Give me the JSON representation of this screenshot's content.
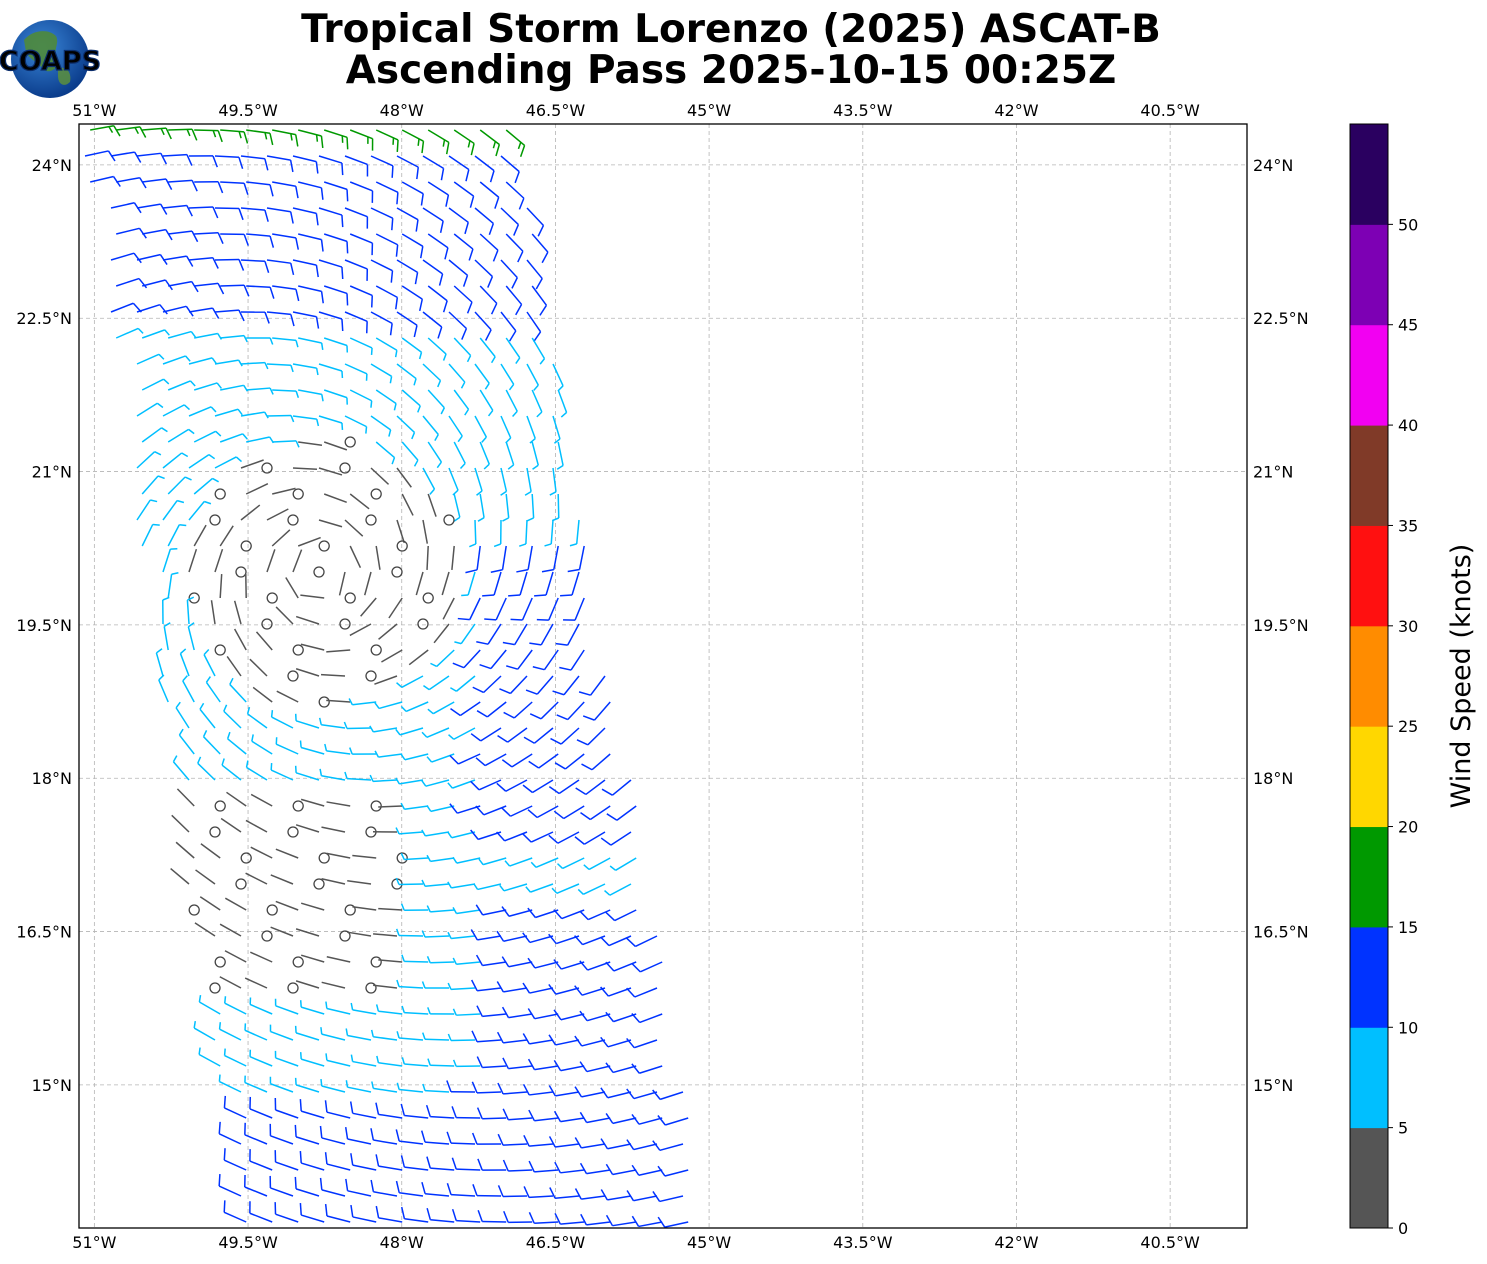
{
  "title": {
    "line1": "Tropical Storm Lorenzo (2025) ASCAT-B",
    "line2": "Ascending Pass 2025-10-15 00:25Z"
  },
  "logo": {
    "text": "COAPS",
    "icon": "globe-icon"
  },
  "map": {
    "lon_range": [
      -51.15,
      -39.75
    ],
    "lat_range": [
      13.6,
      24.4
    ],
    "lon_ticks": [
      -51,
      -49.5,
      -48,
      -46.5,
      -45,
      -43.5,
      -42,
      -40.5
    ],
    "lon_tick_labels": [
      "51°W",
      "49.5°W",
      "48°W",
      "46.5°W",
      "45°W",
      "43.5°W",
      "42°W",
      "40.5°W"
    ],
    "lat_ticks": [
      24,
      22.5,
      21,
      19.5,
      18,
      16.5,
      15
    ],
    "lat_tick_labels": [
      "24°N",
      "22.5°N",
      "21°N",
      "19.5°N",
      "18°N",
      "16.5°N",
      "15°N"
    ],
    "grid": true,
    "swath_outline_lonlat": [
      [
        -51.15,
        24.4
      ],
      [
        -46.9,
        24.4
      ],
      [
        -44.95,
        13.6
      ],
      [
        -49.6,
        13.6
      ]
    ],
    "storm_center_lonlat": [
      -48.8,
      20.0
    ]
  },
  "colorbar": {
    "label": "Wind Speed (knots)",
    "unit": "knots",
    "bins": [
      {
        "min": 0,
        "max": 5,
        "color": "#555555"
      },
      {
        "min": 5,
        "max": 10,
        "color": "#00bfff"
      },
      {
        "min": 10,
        "max": 15,
        "color": "#0033ff"
      },
      {
        "min": 15,
        "max": 20,
        "color": "#009900"
      },
      {
        "min": 20,
        "max": 25,
        "color": "#ffd700"
      },
      {
        "min": 25,
        "max": 30,
        "color": "#ff8c00"
      },
      {
        "min": 30,
        "max": 35,
        "color": "#ff1010"
      },
      {
        "min": 35,
        "max": 40,
        "color": "#803a28"
      },
      {
        "min": 40,
        "max": 45,
        "color": "#f200f2"
      },
      {
        "min": 45,
        "max": 50,
        "color": "#7d00b4"
      },
      {
        "min": 50,
        "max": 55,
        "color": "#2a0060"
      }
    ],
    "tick_values": [
      0,
      5,
      10,
      15,
      20,
      25,
      30,
      35,
      40,
      45,
      50
    ],
    "tick_labels": [
      "0",
      "5",
      "10",
      "15",
      "20",
      "25",
      "30",
      "35",
      "40",
      "45",
      "50"
    ]
  }
}
